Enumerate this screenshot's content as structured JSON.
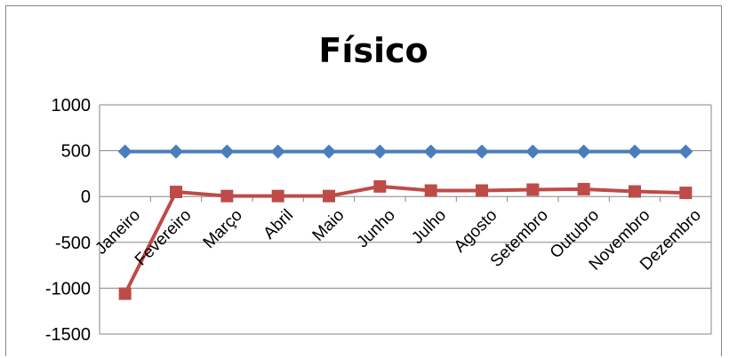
{
  "chart_data": {
    "type": "line",
    "title": "Físico",
    "xlabel": "",
    "ylabel": "",
    "categories": [
      "Janeiro",
      "Fevereiro",
      "Março",
      "Abril",
      "Maio",
      "Junho",
      "Julho",
      "Agosto",
      "Setembro",
      "Outubro",
      "Novembro",
      "Dezembro"
    ],
    "ylim": [
      -1500,
      1000
    ],
    "yticks": [
      1000,
      500,
      0,
      -500,
      -1000,
      -1500
    ],
    "grid": true,
    "legend": "none",
    "series": [
      {
        "color": "#4a7ebb",
        "marker": "diamond",
        "values": [
          490,
          490,
          490,
          490,
          490,
          490,
          490,
          490,
          490,
          490,
          490,
          490
        ]
      },
      {
        "color": "#be4b48",
        "marker": "square",
        "values": [
          -1060,
          50,
          5,
          5,
          5,
          110,
          65,
          65,
          75,
          80,
          55,
          40
        ]
      }
    ]
  }
}
